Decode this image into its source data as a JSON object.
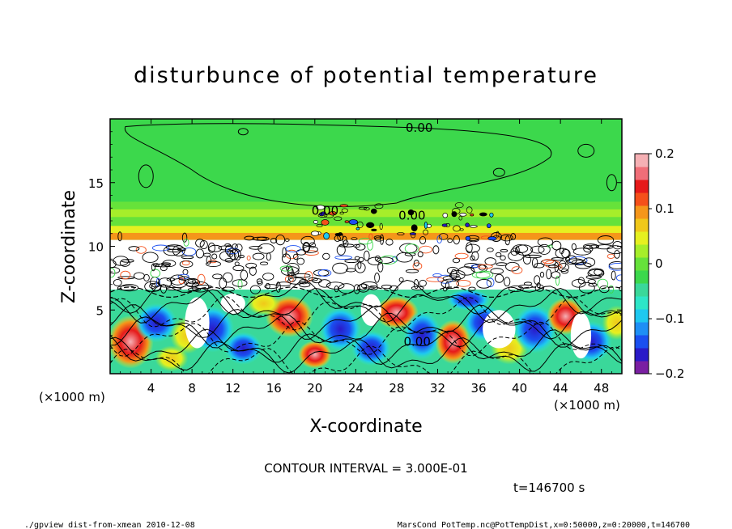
{
  "chart_data": {
    "type": "heatmap",
    "title": "disturbunce of potential temperature",
    "xlabel": "X-coordinate",
    "ylabel": "Z-coordinate",
    "x_unit": "(×1000 m)",
    "y_unit": "(×1000 m)",
    "xlim": [
      0,
      50
    ],
    "ylim": [
      0,
      20
    ],
    "xticks": [
      4,
      8,
      12,
      16,
      20,
      24,
      28,
      32,
      36,
      40,
      44,
      48
    ],
    "yticks": [
      5,
      10,
      15
    ],
    "colorbar": {
      "range": [
        -0.2,
        0.2
      ],
      "ticks": [
        "0.2",
        "0.1",
        "0",
        "−0.1",
        "−0.2"
      ],
      "tick_values": [
        0.2,
        0.1,
        0,
        -0.1,
        -0.2
      ],
      "colors": [
        "#7a1fa2",
        "#2a1ac8",
        "#1a4ff0",
        "#1e8ff5",
        "#1ec8f0",
        "#2ee6c8",
        "#3ad89a",
        "#3cd84c",
        "#66e23a",
        "#a6ee2a",
        "#e6f020",
        "#f0c81a",
        "#f5961a",
        "#f5501a",
        "#e61a1a",
        "#f06e78",
        "#f5b0b4"
      ]
    },
    "contour_labels": [
      {
        "text": "0.00",
        "x": 30.2,
        "z": 19.3
      },
      {
        "text": "0.00",
        "x": 21.0,
        "z": 12.8
      },
      {
        "text": "0.00",
        "x": 29.5,
        "z": 12.4
      },
      {
        "text": "0.00",
        "x": 30.0,
        "z": 2.5
      }
    ],
    "contour_interval_text": "CONTOUR INTERVAL = 3.000E-01",
    "time_text": "t=146700 s"
  },
  "footer": {
    "left": "./gpview_dist-from-xmean  2010-12-08",
    "right": "MarsCond_PotTemp.nc@PotTempDist,x=0:50000,z=0:20000,t=146700"
  }
}
